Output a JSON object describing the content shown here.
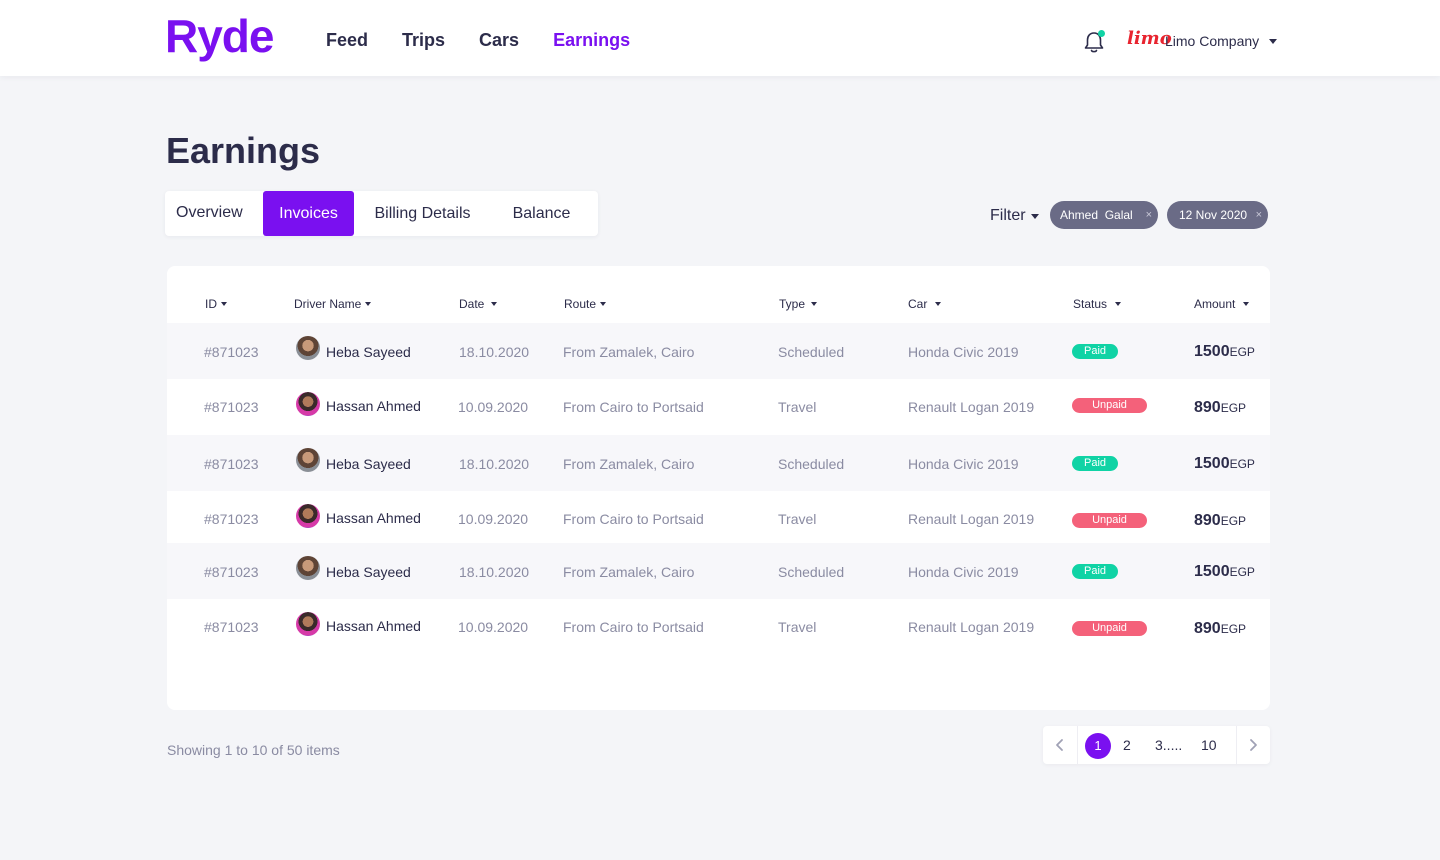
{
  "brand": {
    "name": "Ryde",
    "accent": "#7a10f0"
  },
  "nav": {
    "items": [
      "Feed",
      "Trips",
      "Cars",
      "Earnings"
    ],
    "active": "Earnings"
  },
  "account": {
    "logo_text": "limo",
    "company": "Limo Company"
  },
  "page": {
    "title": "Earnings"
  },
  "tabs": [
    "Overview",
    "Invoices",
    "Billing Details",
    "Balance"
  ],
  "active_tab": "Invoices",
  "filter": {
    "label": "Filter",
    "chips": [
      "Ahmed  Galal",
      "12 Nov 2020"
    ],
    "remove_glyph": "×"
  },
  "table": {
    "columns": [
      "ID",
      "Driver Name",
      "Date",
      "Route",
      "Type",
      "Car",
      "Status",
      "Amount"
    ],
    "currency": "EGP",
    "rows": [
      {
        "id": "#871023",
        "driver": "Heba Sayeed",
        "avatar": "heba",
        "date": "18.10.2020",
        "route": "From Zamalek, Cairo",
        "type": "Scheduled",
        "car": "Honda Civic 2019",
        "status": "Paid",
        "amount": "1500"
      },
      {
        "id": "#871023",
        "driver": "Hassan Ahmed",
        "avatar": "hassan",
        "date": "10.09.2020",
        "route": "From Cairo to Portsaid",
        "type": "Travel",
        "car": "Renault Logan 2019",
        "status": "Unpaid",
        "amount": "890"
      },
      {
        "id": "#871023",
        "driver": "Heba Sayeed",
        "avatar": "heba",
        "date": "18.10.2020",
        "route": "From Zamalek, Cairo",
        "type": "Scheduled",
        "car": "Honda Civic 2019",
        "status": "Paid",
        "amount": "1500"
      },
      {
        "id": "#871023",
        "driver": "Hassan Ahmed",
        "avatar": "hassan",
        "date": "10.09.2020",
        "route": "From Cairo to Portsaid",
        "type": "Travel",
        "car": "Renault Logan 2019",
        "status": "Unpaid",
        "amount": "890"
      },
      {
        "id": "#871023",
        "driver": "Heba Sayeed",
        "avatar": "heba",
        "date": "18.10.2020",
        "route": "From Zamalek, Cairo",
        "type": "Scheduled",
        "car": "Honda Civic 2019",
        "status": "Paid",
        "amount": "1500"
      },
      {
        "id": "#871023",
        "driver": "Hassan Ahmed",
        "avatar": "hassan",
        "date": "10.09.2020",
        "route": "From Cairo to Portsaid",
        "type": "Travel",
        "car": "Renault Logan 2019",
        "status": "Unpaid",
        "amount": "890"
      }
    ]
  },
  "footer": {
    "showing": "Showing 1 to 10 of 50 items"
  },
  "pagination": {
    "current": "1",
    "pages": [
      "2",
      "3.....",
      "10"
    ]
  },
  "status_colors": {
    "Paid": "#10d3a5",
    "Unpaid": "#f4617a"
  }
}
